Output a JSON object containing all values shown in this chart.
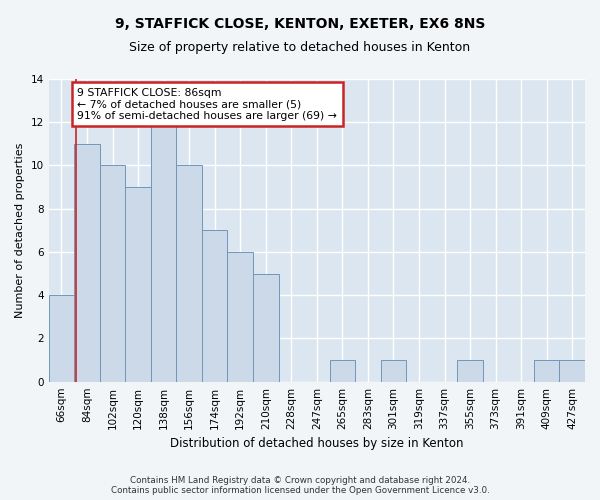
{
  "title1": "9, STAFFICK CLOSE, KENTON, EXETER, EX6 8NS",
  "title2": "Size of property relative to detached houses in Kenton",
  "xlabel": "Distribution of detached houses by size in Kenton",
  "ylabel": "Number of detached properties",
  "categories": [
    "66sqm",
    "84sqm",
    "102sqm",
    "120sqm",
    "138sqm",
    "156sqm",
    "174sqm",
    "192sqm",
    "210sqm",
    "228sqm",
    "247sqm",
    "265sqm",
    "283sqm",
    "301sqm",
    "319sqm",
    "337sqm",
    "355sqm",
    "373sqm",
    "391sqm",
    "409sqm",
    "427sqm"
  ],
  "values": [
    4,
    11,
    10,
    9,
    12,
    10,
    7,
    6,
    5,
    0,
    0,
    1,
    0,
    1,
    0,
    0,
    1,
    0,
    0,
    1,
    1
  ],
  "bar_color": "#ccd9e8",
  "bar_edgecolor": "#7096b8",
  "annotation_text": "9 STAFFICK CLOSE: 86sqm\n← 7% of detached houses are smaller (5)\n91% of semi-detached houses are larger (69) →",
  "annotation_box_facecolor": "#ffffff",
  "annotation_box_edgecolor": "#cc2222",
  "vline_color": "#cc2222",
  "vline_x": 0.585,
  "ylim": [
    0,
    14
  ],
  "yticks": [
    0,
    2,
    4,
    6,
    8,
    10,
    12,
    14
  ],
  "footer_line1": "Contains HM Land Registry data © Crown copyright and database right 2024.",
  "footer_line2": "Contains public sector information licensed under the Open Government Licence v3.0.",
  "bg_color": "#f2f5f8",
  "plot_bg_color": "#dce6f0"
}
